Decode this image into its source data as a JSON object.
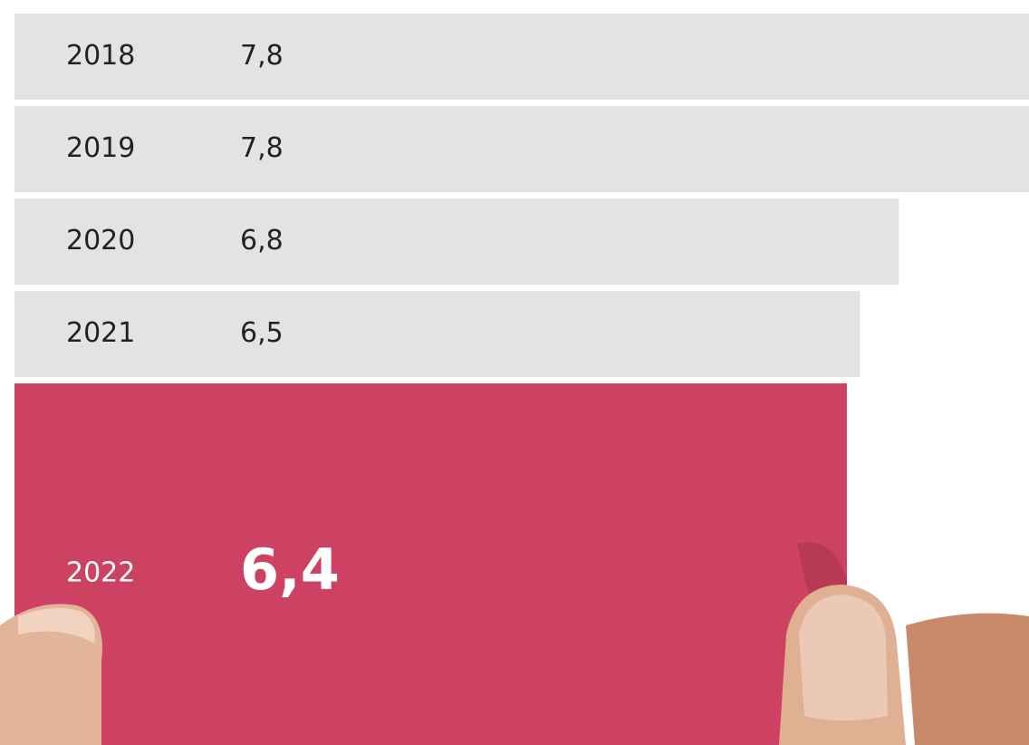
{
  "chart_data": {
    "type": "bar",
    "orientation": "horizontal",
    "categories": [
      "2018",
      "2019",
      "2020",
      "2021",
      "2022"
    ],
    "values": [
      7.8,
      7.8,
      6.8,
      6.5,
      6.4
    ],
    "value_labels": [
      "7,8",
      "7,8",
      "6,8",
      "6,5",
      "6,4"
    ],
    "colors": [
      "#e3e3e3",
      "#e3e3e3",
      "#e3e3e3",
      "#e3e3e3",
      "#cd4263"
    ]
  }
}
